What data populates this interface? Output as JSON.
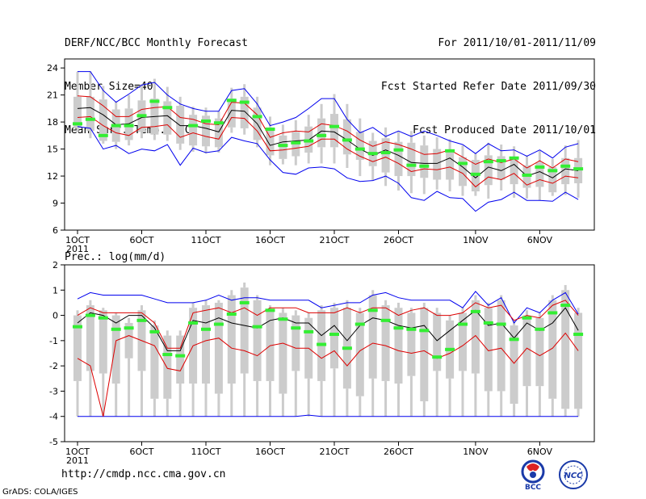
{
  "header": {
    "title": "DERF/NCC/BCC Monthly Forecast",
    "member_size": "Member Size=40",
    "variable": "Mean Surf. Temp.: °C",
    "period": "For 2011/10/01-2011/11/09",
    "start_date": "Fcst Started Refer Date 2011/09/30",
    "produced_date": "Fcst Produced Date 2011/10/01"
  },
  "footer": {
    "url": "http://cmdp.ncc.cma.gov.cn",
    "grads": "GrADS: COLA/IGES",
    "logo_left": "BCC",
    "logo_right": "NCC"
  },
  "colors": {
    "envelope": "#0000ee",
    "spread": "#dd0000",
    "mean": "#000000",
    "box": "#cccccc",
    "obs": "#33ee33",
    "upper_whisker": "#ff8888"
  },
  "chart_data": [
    {
      "type": "box",
      "title": "",
      "ylabel": "Mean Surf. Temp.: °C",
      "ylim": [
        6,
        25
      ],
      "yticks": [
        6,
        9,
        12,
        15,
        18,
        21,
        24
      ],
      "xticks": [
        {
          "day": 1,
          "label": "1OCT",
          "sub": "2011"
        },
        {
          "day": 6,
          "label": "6OCT"
        },
        {
          "day": 11,
          "label": "11OCT"
        },
        {
          "day": 16,
          "label": "16OCT"
        },
        {
          "day": 21,
          "label": "21OCT"
        },
        {
          "day": 26,
          "label": "26OCT"
        },
        {
          "day": 32,
          "label": "1NOV"
        },
        {
          "day": 37,
          "label": "6NOV"
        }
      ],
      "days": [
        1,
        2,
        3,
        4,
        5,
        6,
        7,
        8,
        9,
        10,
        11,
        12,
        13,
        14,
        15,
        16,
        17,
        18,
        19,
        20,
        21,
        22,
        23,
        24,
        25,
        26,
        27,
        28,
        29,
        30,
        31,
        32,
        33,
        34,
        35,
        36,
        37,
        38,
        39,
        40
      ],
      "max": [
        23.6,
        23.6,
        22.0,
        20.3,
        21.0,
        22.2,
        22.8,
        21.9,
        20.8,
        19.7,
        19.6,
        19.2,
        21.8,
        22.2,
        20.8,
        18.6,
        17.7,
        18.2,
        18.8,
        20.0,
        21.1,
        20.0,
        18.4,
        16.8,
        17.4,
        16.9,
        17.0,
        16.5,
        16.3,
        16.1,
        15.4,
        14.5,
        15.7,
        15.5,
        15.3,
        14.3,
        14.8,
        13.9,
        15.4,
        16.0
      ],
      "q3": [
        20.8,
        20.8,
        20.5,
        19.4,
        19.5,
        20.4,
        20.6,
        20.3,
        19.8,
        18.8,
        18.7,
        18.4,
        20.6,
        20.8,
        19.6,
        17.4,
        16.5,
        16.9,
        17.5,
        18.4,
        18.9,
        18.3,
        16.9,
        15.9,
        16.2,
        15.8,
        15.7,
        15.4,
        15.0,
        14.8,
        14.1,
        13.8,
        14.3,
        14.2,
        14.0,
        13.2,
        13.5,
        13.0,
        14.0,
        14.0
      ],
      "q1": [
        17.3,
        17.0,
        15.9,
        15.8,
        16.0,
        16.9,
        16.6,
        16.6,
        15.6,
        15.4,
        15.3,
        15.2,
        17.4,
        17.3,
        16.0,
        14.3,
        13.9,
        14.2,
        14.6,
        15.2,
        15.2,
        14.4,
        13.8,
        13.1,
        12.4,
        12.0,
        12.0,
        11.8,
        11.6,
        11.6,
        10.9,
        10.3,
        11.0,
        11.6,
        11.1,
        10.7,
        10.8,
        10.2,
        11.1,
        11.2
      ],
      "min": [
        16.9,
        16.2,
        15.6,
        15.0,
        15.4,
        16.2,
        16.0,
        15.9,
        14.9,
        14.7,
        14.5,
        14.6,
        16.8,
        16.6,
        15.2,
        13.2,
        13.3,
        13.2,
        13.4,
        13.4,
        13.4,
        12.9,
        12.0,
        11.5,
        10.9,
        10.4,
        10.1,
        10.0,
        10.5,
        10.3,
        9.8,
        9.8,
        9.5,
        10.4,
        9.6,
        9.5,
        9.3,
        9.8,
        9.9,
        9.6
      ],
      "envelope_max": [
        23.6,
        23.6,
        21.5,
        20.2,
        21.1,
        22.1,
        22.4,
        21.0,
        20.0,
        19.5,
        19.2,
        19.2,
        21.5,
        21.7,
        20.0,
        17.6,
        18.0,
        18.5,
        19.5,
        20.6,
        20.6,
        18.3,
        16.8,
        17.4,
        16.4,
        17.0,
        16.4,
        17.0,
        16.5,
        15.9,
        15.5,
        14.5,
        15.6,
        14.8,
        14.9,
        14.2,
        14.9,
        14.0,
        15.2,
        15.6
      ],
      "envelope_min": [
        17.5,
        17.3,
        15.0,
        15.4,
        14.5,
        15.0,
        14.8,
        15.5,
        13.2,
        15.1,
        14.6,
        14.8,
        16.3,
        15.9,
        15.6,
        13.8,
        12.4,
        12.2,
        12.9,
        13.0,
        12.8,
        11.8,
        11.4,
        11.5,
        12.0,
        11.2,
        9.6,
        9.3,
        10.3,
        9.6,
        9.5,
        8.1,
        9.1,
        9.4,
        10.2,
        9.3,
        9.3,
        9.2,
        10.2,
        9.4
      ],
      "upper_spread": [
        20.9,
        20.8,
        19.8,
        18.6,
        18.6,
        19.4,
        19.6,
        19.7,
        18.5,
        18.3,
        17.8,
        17.7,
        20.2,
        20.1,
        18.8,
        16.3,
        16.8,
        17.0,
        16.9,
        17.8,
        17.6,
        17.0,
        16.0,
        15.3,
        15.8,
        15.5,
        15.0,
        14.4,
        14.5,
        14.9,
        14.1,
        13.3,
        13.9,
        13.5,
        13.9,
        12.9,
        13.7,
        12.9,
        13.9,
        13.6
      ],
      "mean": [
        19.5,
        19.6,
        18.8,
        17.7,
        17.8,
        18.5,
        18.6,
        18.7,
        17.6,
        17.6,
        17.3,
        16.9,
        19.3,
        19.2,
        17.8,
        15.4,
        15.8,
        15.9,
        16.0,
        17.0,
        16.9,
        16.0,
        15.0,
        14.3,
        14.9,
        14.3,
        13.5,
        13.4,
        13.4,
        14.0,
        13.0,
        11.8,
        13.0,
        12.6,
        13.3,
        12.0,
        12.5,
        11.8,
        12.8,
        12.6
      ],
      "lower_spread": [
        18.5,
        18.6,
        17.6,
        16.8,
        16.5,
        17.4,
        17.5,
        17.7,
        16.3,
        16.8,
        16.4,
        16.1,
        18.5,
        18.4,
        17.0,
        14.8,
        14.9,
        15.1,
        15.3,
        16.1,
        16.1,
        15.0,
        14.2,
        13.6,
        14.1,
        13.4,
        12.5,
        12.8,
        12.7,
        13.0,
        12.3,
        10.8,
        11.9,
        11.6,
        12.3,
        11.0,
        11.6,
        11.2,
        12.0,
        11.8
      ],
      "observed": [
        17.8,
        18.3,
        16.5,
        17.6,
        17.6,
        18.7,
        20.3,
        19.6,
        null,
        17.6,
        18.1,
        17.9,
        20.4,
        20.2,
        18.6,
        17.2,
        15.4,
        15.7,
        15.9,
        16.5,
        17.5,
        16.0,
        15.0,
        14.5,
        14.6,
        14.9,
        13.2,
        13.1,
        null,
        14.8,
        13.4,
        12.2,
        13.6,
        13.7,
        14.0,
        12.1,
        13.0,
        12.6,
        13.1,
        12.8
      ]
    },
    {
      "type": "box",
      "title": "",
      "ylabel": "Prec.: log(mm/d)",
      "ylim": [
        -5,
        2
      ],
      "yticks": [
        -5,
        -4,
        -3,
        -2,
        -1,
        0,
        1,
        2
      ],
      "xticks": [
        {
          "day": 1,
          "label": "1OCT",
          "sub": "2011"
        },
        {
          "day": 6,
          "label": "6OCT"
        },
        {
          "day": 11,
          "label": "11OCT"
        },
        {
          "day": 16,
          "label": "16OCT"
        },
        {
          "day": 21,
          "label": "21OCT"
        },
        {
          "day": 26,
          "label": "26OCT"
        },
        {
          "day": 32,
          "label": "1NOV"
        },
        {
          "day": 37,
          "label": "6NOV"
        }
      ],
      "days": [
        1,
        2,
        3,
        4,
        5,
        6,
        7,
        8,
        9,
        10,
        11,
        12,
        13,
        14,
        15,
        16,
        17,
        18,
        19,
        20,
        21,
        22,
        23,
        24,
        25,
        26,
        27,
        28,
        29,
        30,
        31,
        32,
        33,
        34,
        35,
        36,
        37,
        38,
        39,
        40
      ],
      "max": [
        0.2,
        0.6,
        0.3,
        0.1,
        -0.1,
        0.4,
        -0.2,
        -0.6,
        -0.6,
        0.5,
        0.6,
        0.6,
        1.0,
        1.3,
        0.8,
        0.4,
        0.3,
        0.2,
        0.1,
        0.4,
        0.5,
        0.6,
        0.3,
        1.0,
        0.6,
        0.5,
        0.3,
        0.5,
        0.3,
        0.0,
        0.3,
        0.8,
        0.5,
        0.8,
        -0.2,
        0.2,
        0.1,
        0.8,
        1.2,
        0.3
      ],
      "q3": [
        0.0,
        0.4,
        0.2,
        0.0,
        -0.3,
        0.2,
        -0.4,
        -0.8,
        -0.8,
        0.3,
        0.4,
        0.5,
        0.8,
        1.1,
        0.6,
        0.2,
        0.1,
        0.0,
        -0.1,
        0.2,
        0.3,
        0.3,
        0.1,
        0.8,
        0.4,
        0.3,
        0.1,
        0.3,
        0.1,
        -0.2,
        0.1,
        0.6,
        0.3,
        0.6,
        -0.4,
        0.0,
        -0.1,
        0.6,
        1.0,
        0.1
      ],
      "q1": [
        -2.6,
        -2.2,
        -2.3,
        -2.7,
        -1.7,
        -2.2,
        -3.3,
        -3.3,
        -2.7,
        -2.7,
        -2.7,
        -3.1,
        -2.7,
        -2.3,
        -2.6,
        -2.6,
        -3.1,
        -2.2,
        -2.5,
        -2.6,
        -2.1,
        -2.9,
        -3.2,
        -2.5,
        -2.6,
        -2.7,
        -2.4,
        -3.4,
        -2.2,
        -2.5,
        -2.2,
        -2.3,
        -3.0,
        -3.0,
        -3.5,
        -2.8,
        -2.8,
        -3.3,
        -3.7,
        -3.7
      ],
      "min": [
        -4.0,
        -4.0,
        -4.0,
        -4.0,
        -4.0,
        -4.0,
        -4.0,
        -4.0,
        -4.0,
        -4.0,
        -4.0,
        -4.0,
        -4.0,
        -4.0,
        -4.0,
        -4.0,
        -4.0,
        -4.0,
        -4.0,
        -4.0,
        -4.0,
        -4.0,
        -4.0,
        -4.0,
        -4.0,
        -4.0,
        -4.0,
        -4.0,
        -4.0,
        -4.0,
        -4.0,
        -4.0,
        -4.0,
        -4.0,
        -4.0,
        -4.0,
        -4.0,
        -4.0,
        -4.0,
        -4.0
      ],
      "envelope_max": [
        0.65,
        0.9,
        0.8,
        0.8,
        0.8,
        0.8,
        0.65,
        0.5,
        0.5,
        0.5,
        0.6,
        0.8,
        0.6,
        0.7,
        0.7,
        0.6,
        0.6,
        0.6,
        0.6,
        0.3,
        0.4,
        0.5,
        0.5,
        0.8,
        0.9,
        0.7,
        0.6,
        0.6,
        0.6,
        0.6,
        0.3,
        0.95,
        0.4,
        0.7,
        -0.3,
        0.3,
        0.1,
        0.6,
        0.9,
        0.05
      ],
      "envelope_min": [
        -4.0,
        -4.0,
        -4.0,
        -4.0,
        -4.0,
        -4.0,
        -4.0,
        -4.0,
        -4.0,
        -4.0,
        -4.0,
        -4.0,
        -4.0,
        -4.0,
        -4.0,
        -4.0,
        -4.0,
        -4.0,
        -3.95,
        -4.0,
        -4.0,
        -4.0,
        -4.0,
        -4.0,
        -4.0,
        -4.0,
        -4.0,
        -4.0,
        -4.0,
        -4.0,
        -4.0,
        -4.0,
        -4.0,
        -4.0,
        -4.0,
        -4.0,
        -4.0,
        -4.0,
        -4.0,
        -4.0
      ],
      "upper_spread": [
        0.0,
        0.3,
        0.1,
        0.1,
        0.1,
        0.1,
        -0.3,
        -1.3,
        -1.3,
        0.1,
        0.2,
        0.3,
        0.1,
        0.3,
        0.0,
        0.3,
        0.3,
        0.3,
        0.1,
        0.1,
        0.1,
        0.3,
        0.1,
        0.3,
        0.3,
        0.0,
        0.2,
        0.3,
        0.0,
        0.0,
        0.1,
        0.5,
        0.3,
        0.4,
        -0.2,
        0.0,
        -0.1,
        0.4,
        0.6,
        0.0
      ],
      "mean": [
        -0.3,
        0.1,
        0.0,
        -0.3,
        0.0,
        0.0,
        -0.5,
        -1.4,
        -1.4,
        -0.2,
        -0.3,
        -0.1,
        -0.3,
        -0.4,
        -0.5,
        -0.2,
        -0.1,
        -0.3,
        -0.3,
        -0.8,
        -0.4,
        -1.0,
        -0.4,
        -0.1,
        -0.2,
        -0.4,
        -0.5,
        -0.4,
        -1.0,
        -0.6,
        -0.2,
        0.2,
        -0.4,
        -0.3,
        -0.9,
        -0.3,
        -0.6,
        -0.3,
        0.3,
        -0.6
      ],
      "lower_spread": [
        -1.7,
        -2.0,
        -4.0,
        -1.0,
        -0.8,
        -1.0,
        -1.2,
        -2.1,
        -2.2,
        -1.2,
        -1.0,
        -0.9,
        -1.3,
        -1.4,
        -1.6,
        -1.2,
        -1.1,
        -1.3,
        -1.3,
        -1.7,
        -1.4,
        -2.0,
        -1.4,
        -1.1,
        -1.2,
        -1.4,
        -1.5,
        -1.4,
        -1.7,
        -1.5,
        -1.2,
        -0.8,
        -1.4,
        -1.3,
        -1.9,
        -1.3,
        -1.6,
        -1.3,
        -0.7,
        -1.4
      ],
      "observed": [
        -0.45,
        0.0,
        -0.1,
        -0.55,
        -0.5,
        -0.2,
        -0.65,
        -1.55,
        -1.6,
        -0.3,
        -0.55,
        -0.35,
        0.05,
        0.5,
        -0.45,
        0.2,
        -0.15,
        -0.5,
        -0.65,
        -1.15,
        -0.75,
        -1.3,
        -0.35,
        0.2,
        -0.2,
        -0.5,
        -0.55,
        -0.6,
        -1.65,
        -1.35,
        -0.35,
        0.15,
        -0.3,
        -0.35,
        -0.95,
        -0.1,
        -0.55,
        0.1,
        0.4,
        -0.75
      ]
    }
  ]
}
